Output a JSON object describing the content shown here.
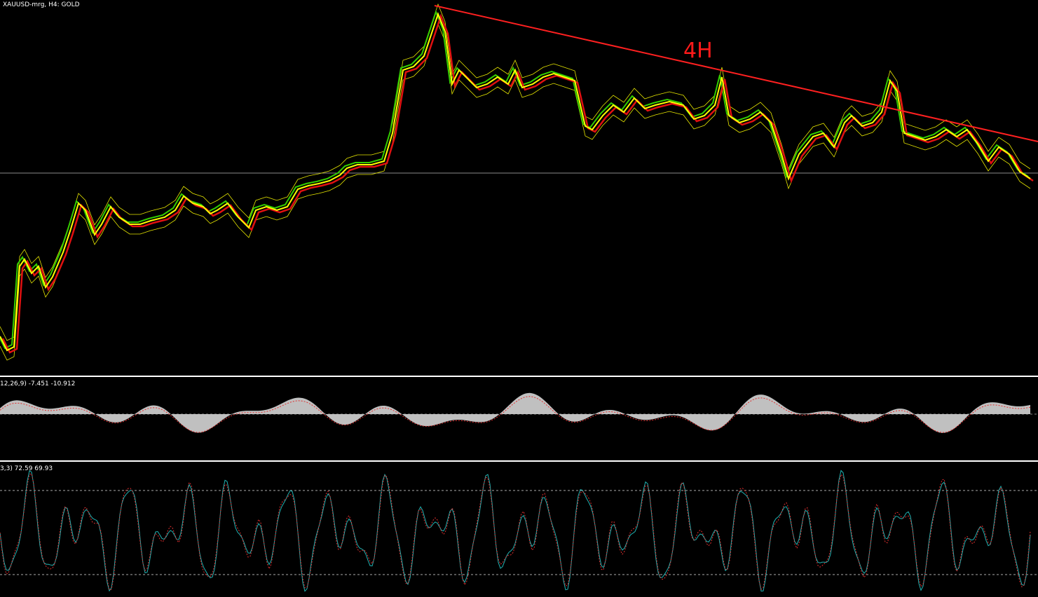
{
  "header": {
    "symbol": "XAUUSD-mrg, H4:  GOLD"
  },
  "annotation": "4H",
  "macd_panel": {
    "label": "12,26,9) -7.451 -10.912"
  },
  "stochastic_panel": {
    "label": "3,3) 72.59 69.93"
  }
}
